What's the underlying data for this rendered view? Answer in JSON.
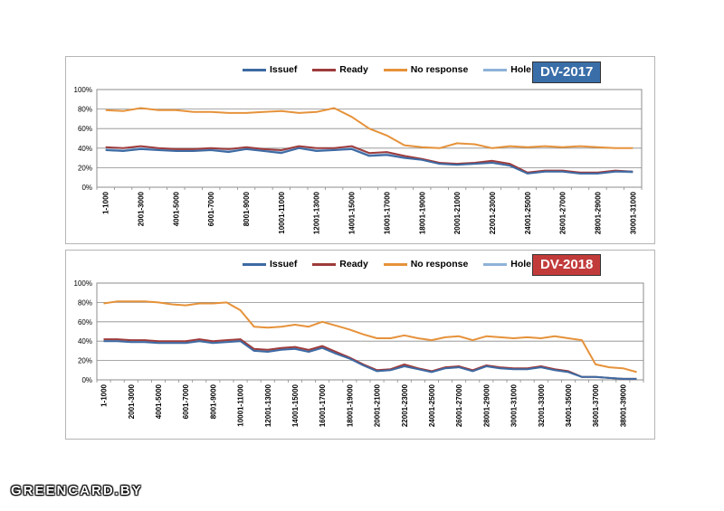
{
  "watermark": "GREENCARD.BY",
  "legend_labels": [
    "Issuef",
    "Ready",
    "No response",
    "Hole"
  ],
  "colors": {
    "Issuef": "#3d6aa3",
    "Ready": "#9e3b3b",
    "No response": "#e6923a",
    "Hole": "#8fb2d8"
  },
  "chart_data": [
    {
      "type": "line",
      "badge": "DV-2017",
      "badge_color": "#3a6ea8",
      "yticks": [
        "0%",
        "20%",
        "40%",
        "60%",
        "80%",
        "100%"
      ],
      "ylim": [
        0,
        100
      ],
      "grid": true,
      "legend_position": "top",
      "x_tick_labels": [
        "1-1000",
        "2001-3000",
        "4001-5000",
        "6001-7000",
        "8001-9000",
        "10001-11000",
        "12001-13000",
        "14001-15000",
        "16001-17000",
        "18001-19000",
        "20001-21000",
        "22001-23000",
        "24001-25000",
        "26001-27000",
        "28001-29000",
        "30001-31000"
      ],
      "n_points": 31,
      "series": [
        {
          "name": "Issuef",
          "values": [
            38,
            37,
            39,
            38,
            37,
            37,
            38,
            36,
            39,
            37,
            35,
            40,
            37,
            38,
            39,
            32,
            33,
            30,
            28,
            24,
            23,
            24,
            25,
            22,
            14,
            16,
            16,
            14,
            14,
            16,
            16
          ]
        },
        {
          "name": "Ready",
          "values": [
            41,
            40,
            42,
            40,
            39,
            39,
            40,
            39,
            41,
            39,
            38,
            42,
            40,
            40,
            42,
            35,
            36,
            32,
            29,
            25,
            24,
            25,
            27,
            24,
            15,
            17,
            17,
            15,
            15,
            17,
            16
          ]
        },
        {
          "name": "No response",
          "values": [
            79,
            78,
            81,
            79,
            79,
            77,
            77,
            76,
            76,
            77,
            78,
            76,
            77,
            81,
            72,
            60,
            53,
            43,
            41,
            40,
            45,
            44,
            40,
            42,
            41,
            42,
            41,
            42,
            41,
            40,
            40
          ]
        },
        {
          "name": "Hole",
          "values": [
            39,
            38,
            40,
            39,
            38,
            38,
            39,
            37,
            40,
            38,
            36,
            41,
            38,
            39,
            40,
            33,
            34,
            31,
            28,
            24,
            23,
            24,
            26,
            23,
            14,
            16,
            16,
            14,
            14,
            16,
            15
          ]
        }
      ]
    },
    {
      "type": "line",
      "badge": "DV-2018",
      "badge_color": "#c23b3b",
      "yticks": [
        "0%",
        "20%",
        "40%",
        "60%",
        "80%",
        "100%"
      ],
      "ylim": [
        0,
        100
      ],
      "grid": true,
      "legend_position": "top",
      "x_tick_labels": [
        "1-1000",
        "2001-3000",
        "4001-5000",
        "6001-7000",
        "8001-9000",
        "10001-11000",
        "12001-13000",
        "14001-15000",
        "16001-17000",
        "18001-19000",
        "20001-21000",
        "22001-23000",
        "24001-25000",
        "26001-27000",
        "28001-29000",
        "30001-31000",
        "32001-33000",
        "34001-35000",
        "36001-37000",
        "38001-39000"
      ],
      "n_points": 40,
      "series": [
        {
          "name": "Issuef",
          "values": [
            40,
            40,
            39,
            39,
            38,
            38,
            38,
            40,
            38,
            39,
            40,
            30,
            29,
            31,
            32,
            29,
            33,
            27,
            22,
            15,
            9,
            10,
            14,
            11,
            8,
            12,
            13,
            9,
            14,
            12,
            11,
            11,
            13,
            10,
            8,
            3,
            3,
            2,
            1,
            1
          ]
        },
        {
          "name": "Ready",
          "values": [
            42,
            42,
            41,
            41,
            40,
            40,
            40,
            42,
            40,
            41,
            42,
            32,
            31,
            33,
            34,
            31,
            35,
            29,
            23,
            16,
            10,
            11,
            16,
            12,
            9,
            13,
            14,
            10,
            15,
            13,
            12,
            12,
            14,
            11,
            9,
            3,
            3,
            2,
            1,
            1
          ]
        },
        {
          "name": "No response",
          "values": [
            79,
            81,
            81,
            81,
            80,
            78,
            77,
            79,
            79,
            80,
            72,
            55,
            54,
            55,
            57,
            55,
            60,
            56,
            52,
            47,
            43,
            43,
            46,
            43,
            41,
            44,
            45,
            41,
            45,
            44,
            43,
            44,
            43,
            45,
            43,
            41,
            16,
            13,
            12,
            8
          ]
        },
        {
          "name": "Hole",
          "values": [
            41,
            41,
            40,
            40,
            39,
            39,
            39,
            41,
            39,
            40,
            41,
            31,
            30,
            32,
            33,
            30,
            34,
            28,
            22,
            15,
            9,
            10,
            15,
            11,
            8,
            12,
            13,
            9,
            14,
            12,
            11,
            11,
            13,
            10,
            8,
            3,
            3,
            2,
            1,
            1
          ]
        }
      ]
    }
  ]
}
